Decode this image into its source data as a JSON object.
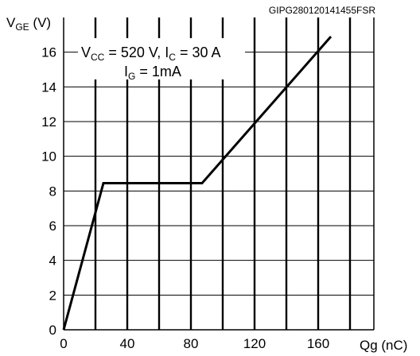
{
  "figure_code": "GIPG280120141455FSR",
  "chart_data": {
    "type": "line",
    "ylabel": {
      "main": "V",
      "sub": "GE",
      "unit": " (V)"
    },
    "xlabel": "Qg (nC)",
    "xlim": [
      0,
      195
    ],
    "ylim": [
      0,
      18
    ],
    "xticks": [
      0,
      40,
      80,
      120,
      160
    ],
    "yticks": [
      0,
      2,
      4,
      6,
      8,
      10,
      12,
      14,
      16
    ],
    "xticklabels": [
      "0",
      "40",
      "80",
      "120",
      "160"
    ],
    "yticklabels": [
      "0",
      "2",
      "4",
      "6",
      "8",
      "10",
      "12",
      "14",
      "16"
    ],
    "grid": true,
    "annotation": {
      "line1": {
        "v": "V",
        "v_sub": "CC",
        "v_text": " = 520 V, ",
        "i": "I",
        "i_sub": "C",
        "i_text": " = 30 A"
      },
      "line2": {
        "i": "I",
        "i_sub": "G",
        "i_text": " = 1mA"
      }
    },
    "series": [
      {
        "x": [
          0,
          25,
          87,
          168
        ],
        "y": [
          0,
          8.45,
          8.45,
          16.9
        ]
      }
    ]
  }
}
